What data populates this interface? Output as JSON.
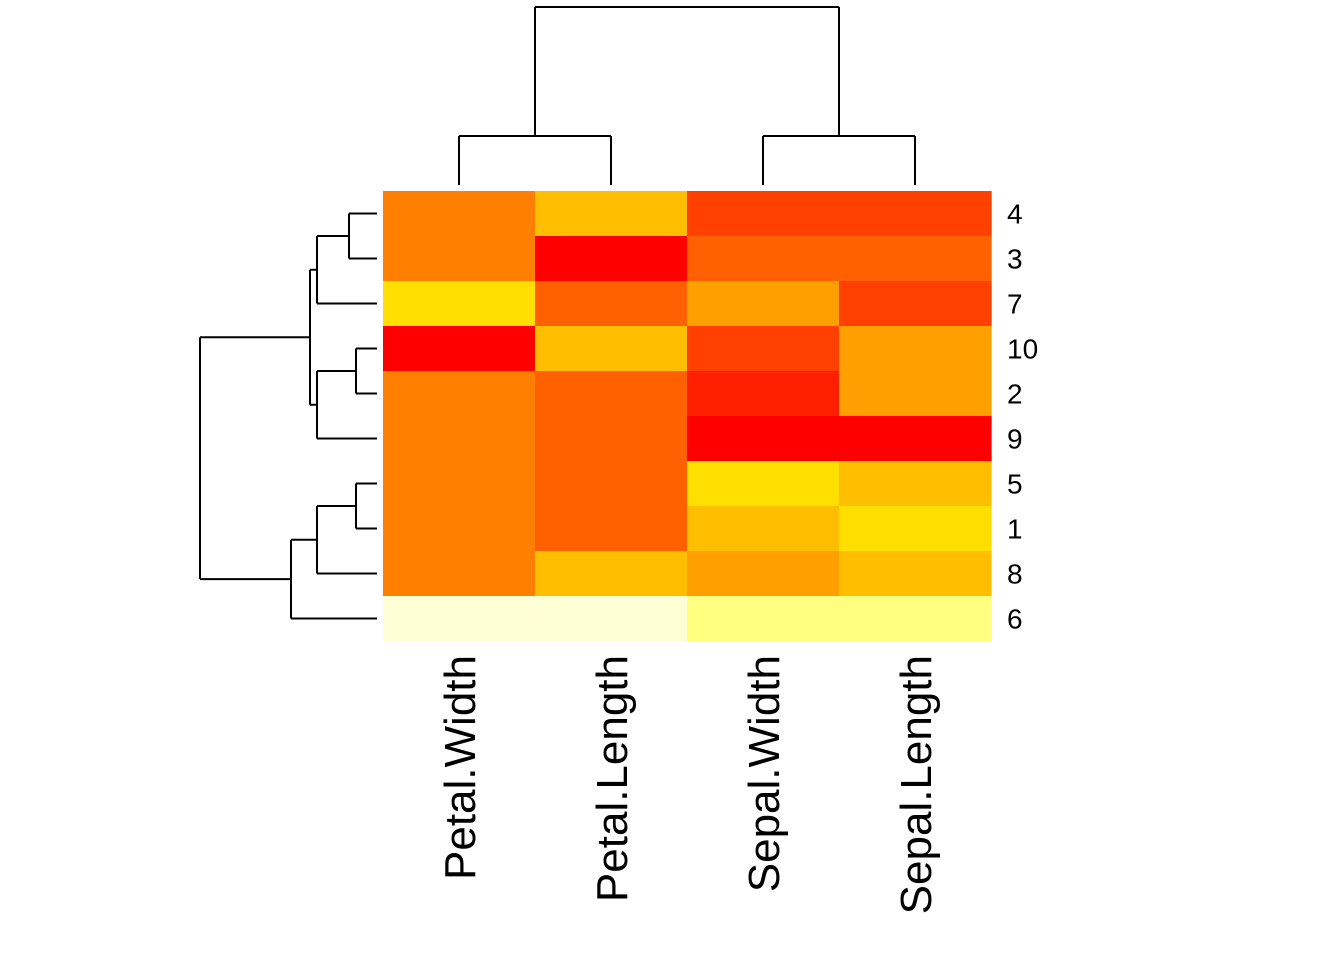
{
  "chart_data": {
    "type": "heatmap",
    "title": "",
    "columns": [
      "Petal.Width",
      "Petal.Length",
      "Sepal.Width",
      "Sepal.Length"
    ],
    "rows": [
      "4",
      "3",
      "7",
      "10",
      "2",
      "9",
      "5",
      "1",
      "8",
      "6"
    ],
    "palette": [
      "#FF0000",
      "#FF2000",
      "#FF4000",
      "#FF6000",
      "#FF8000",
      "#FFA000",
      "#FFBF00",
      "#FFDF00",
      "#FFFF80",
      "#FFFFD5"
    ],
    "levels": [
      [
        4,
        6,
        2,
        2
      ],
      [
        4,
        0,
        3,
        3
      ],
      [
        7,
        3,
        5,
        2
      ],
      [
        0,
        6,
        2,
        5
      ],
      [
        4,
        3,
        1,
        5
      ],
      [
        4,
        3,
        0,
        0
      ],
      [
        4,
        3,
        7,
        6
      ],
      [
        4,
        3,
        6,
        7
      ],
      [
        4,
        6,
        5,
        6
      ],
      [
        9,
        9,
        8,
        8
      ]
    ],
    "row_dendrogram": "((((4,3),7),((10,2),9)),(((5,1),8),6))",
    "column_dendrogram": "((Petal.Width,Petal.Length),(Sepal.Width,Sepal.Length))"
  }
}
